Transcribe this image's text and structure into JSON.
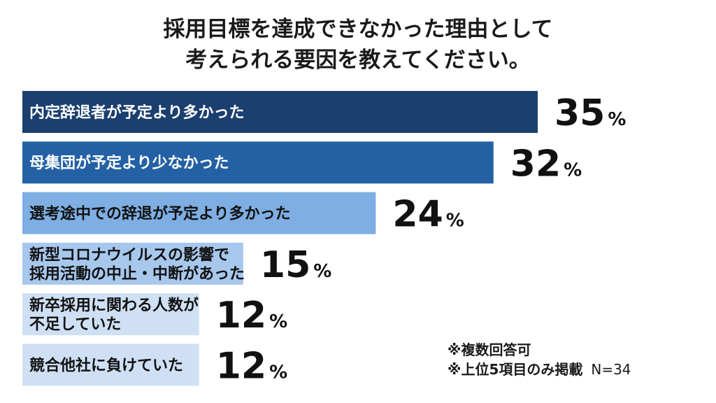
{
  "title_line1": "採用目標を達成できなかった理由として",
  "title_line2": "考えられる要因を教えてください。",
  "chart_data": {
    "type": "bar",
    "orientation": "horizontal",
    "unit": "%",
    "xlim": [
      0,
      35
    ],
    "categories": [
      [
        "内定辞退者が予定より多かった"
      ],
      [
        "母集団が予定より少なかった"
      ],
      [
        "選考途中での辞退が予定より多かった"
      ],
      [
        "新型コロナウイルスの影響で",
        "採用活動の中止・中断があった"
      ],
      [
        "新卒採用に関わる人数が",
        "不足していた"
      ],
      [
        "競合他社に負けていた"
      ]
    ],
    "values": [
      35,
      32,
      24,
      15,
      12,
      12
    ],
    "colors": [
      "#1b3f6e",
      "#2461a4",
      "#7eaee2",
      "#a7c7ec",
      "#cfe0f4",
      "#cfe0f4"
    ],
    "label_colors": [
      "#ffffff",
      "#ffffff",
      "#111111",
      "#111111",
      "#111111",
      "#111111"
    ]
  },
  "note_line1": "※複数回答可",
  "note_line2": "※上位5項目のみ掲載",
  "sample_size": "N=34"
}
